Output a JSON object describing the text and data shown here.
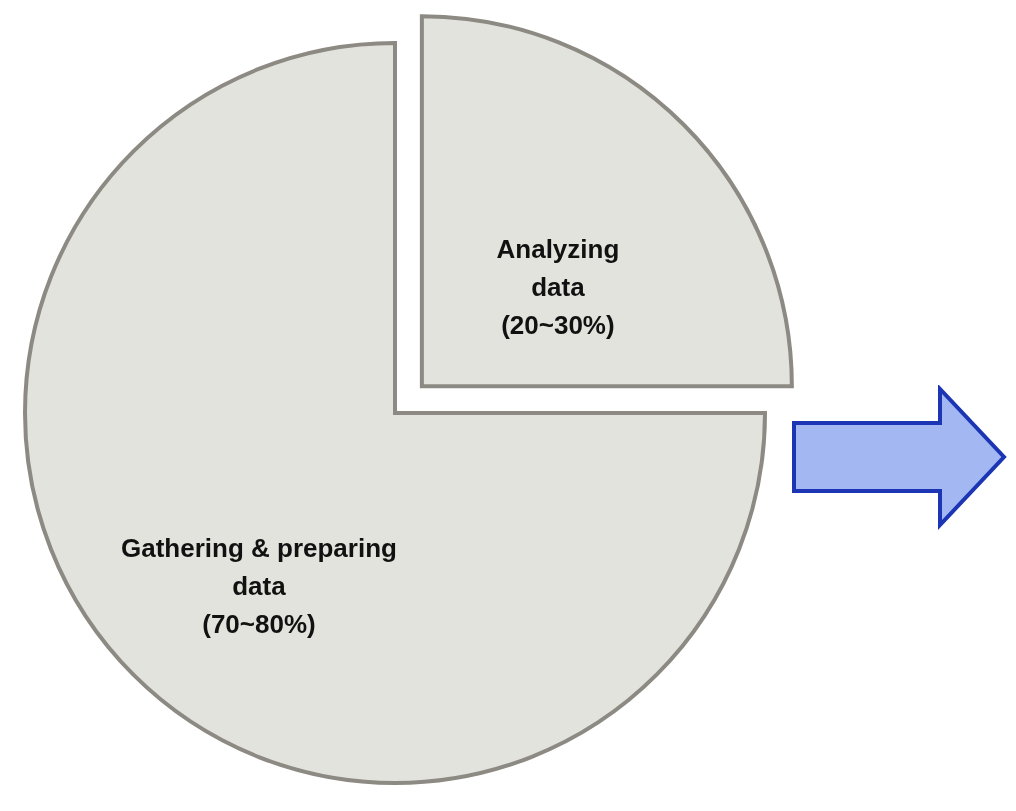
{
  "chart_data": {
    "type": "pie",
    "categories": [
      "Analyzing data (20~30%)",
      "Gathering & preparing data (70~80%)"
    ],
    "values": [
      25,
      75
    ],
    "colors": [
      "#e3e3de",
      "#e3e3de"
    ]
  }
}
